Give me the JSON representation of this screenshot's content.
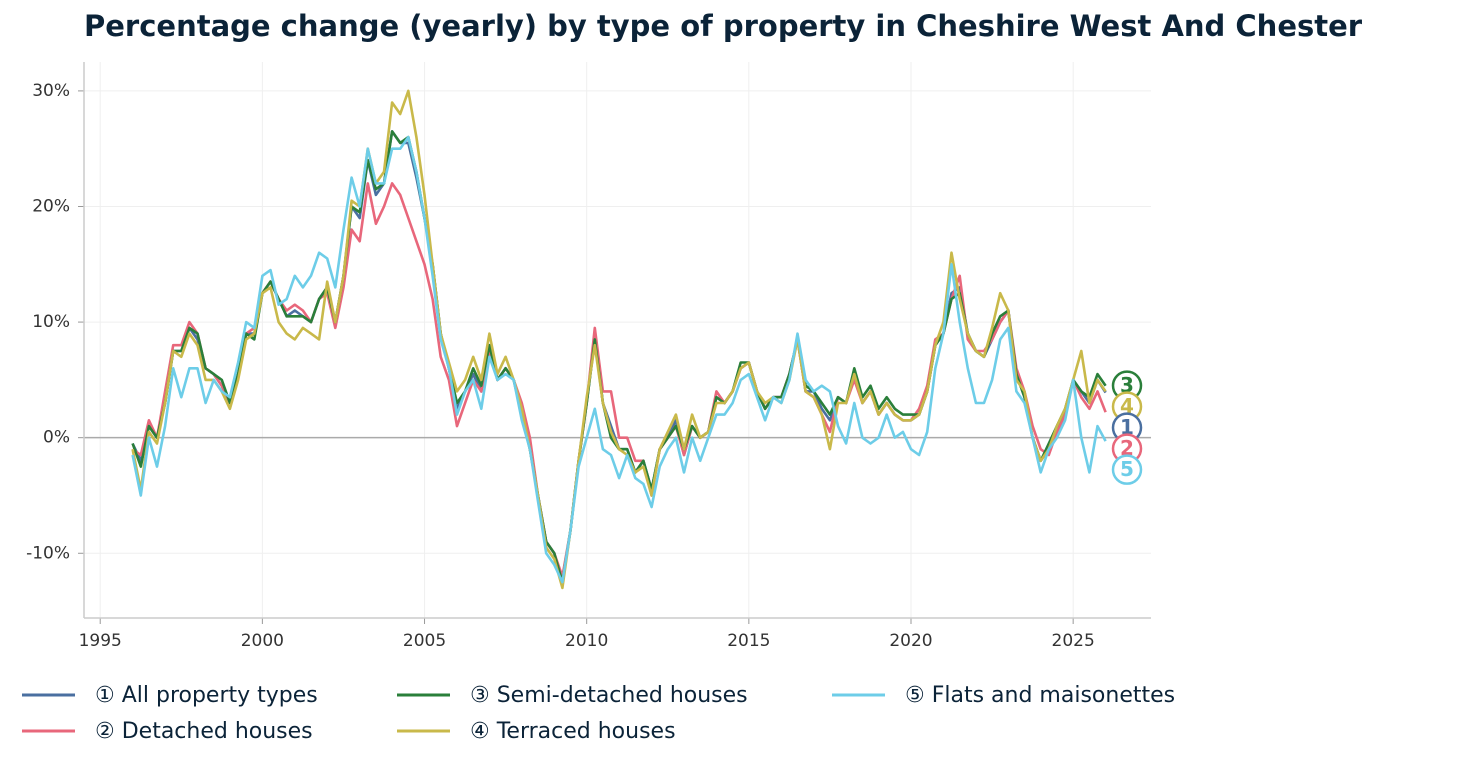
{
  "chart_data": {
    "type": "line",
    "title": "Percentage change (yearly) by type of property in Cheshire West And Chester",
    "x": [
      1996,
      1996.25,
      1996.5,
      1996.75,
      1997,
      1997.25,
      1997.5,
      1997.75,
      1998,
      1998.25,
      1998.5,
      1998.75,
      1999,
      1999.25,
      1999.5,
      1999.75,
      2000,
      2000.25,
      2000.5,
      2000.75,
      2001,
      2001.25,
      2001.5,
      2001.75,
      2002,
      2002.25,
      2002.5,
      2002.75,
      2003,
      2003.25,
      2003.5,
      2003.75,
      2004,
      2004.25,
      2004.5,
      2004.75,
      2005,
      2005.25,
      2005.5,
      2005.75,
      2006,
      2006.25,
      2006.5,
      2006.75,
      2007,
      2007.25,
      2007.5,
      2007.75,
      2008,
      2008.25,
      2008.5,
      2008.75,
      2009,
      2009.25,
      2009.5,
      2009.75,
      2010,
      2010.25,
      2010.5,
      2010.75,
      2011,
      2011.25,
      2011.5,
      2011.75,
      2012,
      2012.25,
      2012.5,
      2012.75,
      2013,
      2013.25,
      2013.5,
      2013.75,
      2014,
      2014.25,
      2014.5,
      2014.75,
      2015,
      2015.25,
      2015.5,
      2015.75,
      2016,
      2016.25,
      2016.5,
      2016.75,
      2017,
      2017.25,
      2017.5,
      2017.75,
      2018,
      2018.25,
      2018.5,
      2018.75,
      2019,
      2019.25,
      2019.5,
      2019.75,
      2020,
      2020.25,
      2020.5,
      2020.75,
      2021,
      2021.25,
      2021.5,
      2021.75,
      2022,
      2022.25,
      2022.5,
      2022.75,
      2023,
      2023.25,
      2023.5,
      2023.75,
      2024,
      2024.25,
      2024.5,
      2024.75,
      2025,
      2025.25,
      2025.5,
      2025.75,
      2026
    ],
    "series": [
      {
        "name": "① All property types",
        "label": "1",
        "color": "#4a6fa0",
        "values": [
          -0.5,
          -2,
          1,
          0,
          3,
          7.5,
          7.5,
          9.5,
          8.5,
          6,
          5.5,
          4.5,
          3,
          5.5,
          9,
          9,
          12.5,
          13.5,
          12,
          10.5,
          11,
          10.5,
          10,
          12,
          13,
          10,
          14,
          20,
          19,
          24,
          21,
          22,
          26.5,
          25.5,
          25.5,
          22.5,
          19,
          15,
          9,
          6,
          2.5,
          4,
          5.5,
          4,
          8,
          5,
          6,
          5,
          2,
          -1,
          -5,
          -9,
          -10,
          -12.5,
          -8,
          -2,
          3,
          8.5,
          3,
          1,
          -1,
          -1,
          -3,
          -2,
          -4.5,
          -1,
          0,
          1.5,
          -1.5,
          1,
          0,
          0.5,
          3.5,
          3,
          4,
          6,
          6.5,
          4,
          2.5,
          3.5,
          3.5,
          5.5,
          8.5,
          4,
          4,
          2.5,
          1.5,
          3.5,
          3,
          5.5,
          3,
          4,
          2,
          3,
          2,
          1.5,
          1.5,
          2,
          4,
          8,
          9,
          12.5,
          13,
          9,
          7.5,
          7,
          8.5,
          10,
          11,
          5.5,
          3.5,
          0,
          -2,
          -1,
          0.5,
          2,
          5,
          4,
          3,
          5,
          3.9
        ]
      },
      {
        "name": "② Detached houses",
        "label": "2",
        "color": "#e8677b",
        "values": [
          -1,
          -1.5,
          1.5,
          0,
          4,
          8,
          8,
          10,
          9,
          6,
          5.5,
          4.5,
          3,
          5.5,
          9,
          9.5,
          12.5,
          13.5,
          12,
          11,
          11.5,
          11,
          10,
          12,
          12.5,
          9.5,
          13,
          18,
          17,
          22,
          18.5,
          20,
          22,
          21,
          19,
          17,
          15,
          12,
          7,
          5,
          1,
          3,
          5,
          4,
          7.5,
          5,
          6,
          5,
          3,
          0,
          -5,
          -9,
          -10,
          -12,
          -8,
          -2,
          3,
          9.5,
          4,
          4,
          0,
          0,
          -2,
          -2,
          -5,
          -1,
          0,
          1,
          -1.5,
          1,
          0,
          0.5,
          4,
          3,
          4,
          6,
          6.5,
          4,
          2.5,
          3.5,
          3.5,
          5.5,
          8.5,
          4,
          3.5,
          2,
          0.5,
          3.5,
          3,
          5,
          3,
          4,
          2,
          3,
          2,
          1.5,
          1.5,
          2.5,
          4.5,
          8.5,
          9,
          12,
          14,
          8.5,
          7.5,
          7.5,
          8.5,
          10,
          11,
          6,
          4,
          1,
          -1,
          -1.5,
          0.5,
          2,
          5,
          3.5,
          2.5,
          4,
          2.2
        ]
      },
      {
        "name": "③ Semi-detached houses",
        "label": "3",
        "color": "#2a7f3a",
        "values": [
          -0.5,
          -2.5,
          1,
          0,
          3,
          7.5,
          7.5,
          9.5,
          9,
          6,
          5.5,
          5,
          3,
          5.5,
          9,
          8.5,
          12.5,
          13.5,
          12,
          10.5,
          10.5,
          10.5,
          10,
          12,
          13,
          10,
          14,
          20,
          19.5,
          24,
          21.5,
          22,
          26.5,
          25.5,
          26,
          23,
          19,
          15,
          9,
          6,
          3,
          4,
          6,
          4.5,
          8,
          5,
          6,
          5,
          2,
          -1,
          -5,
          -9,
          -10,
          -12.5,
          -8,
          -2,
          3,
          8.5,
          3,
          0,
          -1,
          -1,
          -3,
          -2,
          -4.5,
          -1,
          0,
          1,
          -1,
          1,
          0,
          0.5,
          3.5,
          3,
          4,
          6.5,
          6.5,
          4,
          2.5,
          3.5,
          3.5,
          5.5,
          8.5,
          4.5,
          4,
          3,
          2,
          3.5,
          3,
          6,
          3.5,
          4.5,
          2.5,
          3.5,
          2.5,
          2,
          2,
          2,
          4,
          8,
          9,
          12,
          12.5,
          9,
          7.5,
          7,
          9,
          10.5,
          11,
          5.5,
          3.5,
          0,
          -2,
          -0.5,
          1,
          2.5,
          5,
          4,
          3.5,
          5.5,
          4.5
        ]
      },
      {
        "name": "④ Terraced houses",
        "label": "4",
        "color": "#c9b94a",
        "values": [
          -1,
          -4.5,
          0.5,
          -0.5,
          3,
          7.5,
          7,
          9,
          8,
          5,
          5,
          4,
          2.5,
          5,
          8.5,
          9,
          12.5,
          13,
          10,
          9,
          8.5,
          9.5,
          9,
          8.5,
          13.5,
          10,
          14,
          20.5,
          20,
          25,
          22,
          23,
          29,
          28,
          30,
          26,
          21,
          15,
          9,
          6.5,
          4,
          5,
          7,
          5,
          9,
          5.5,
          7,
          5,
          2.5,
          -1,
          -5,
          -9.5,
          -10.5,
          -13,
          -8,
          -2,
          3.5,
          8,
          3,
          0.5,
          -1,
          -1.5,
          -3,
          -2.5,
          -5,
          -1,
          0.5,
          2,
          -1,
          2,
          0,
          0.5,
          3,
          3,
          4,
          6,
          6.5,
          4,
          3,
          3.5,
          3,
          5,
          8.5,
          4,
          3.5,
          2,
          -1,
          3,
          3,
          5.5,
          3,
          4,
          2,
          3,
          2,
          1.5,
          1.5,
          2,
          4,
          8,
          10,
          16,
          12,
          9,
          7.5,
          7,
          9.5,
          12.5,
          11,
          5,
          4,
          0,
          -2,
          -1,
          1,
          2.5,
          5,
          7.5,
          3,
          5,
          4
        ]
      },
      {
        "name": "⑤ Flats and maisonettes",
        "label": "5",
        "color": "#6dcde8",
        "values": [
          -1.5,
          -5,
          0,
          -2.5,
          1,
          6,
          3.5,
          6,
          6,
          3,
          5,
          4,
          3.5,
          6.5,
          10,
          9.5,
          14,
          14.5,
          11.5,
          12,
          14,
          13,
          14,
          16,
          15.5,
          13,
          18,
          22.5,
          20,
          25,
          22,
          22,
          25,
          25,
          26,
          23,
          19,
          14,
          8.5,
          6,
          2,
          4,
          5,
          2.5,
          7,
          5,
          5.5,
          5,
          1.5,
          -1,
          -5.5,
          -10,
          -11,
          -12.5,
          -8,
          -2.5,
          0,
          2.5,
          -1,
          -1.5,
          -3.5,
          -1.5,
          -3.5,
          -4,
          -6,
          -2.5,
          -1,
          0,
          -3,
          0,
          -2,
          0,
          2,
          2,
          3,
          5,
          5.5,
          3.5,
          1.5,
          3.5,
          3,
          5,
          9,
          5,
          4,
          4.5,
          4,
          1,
          -0.5,
          3,
          0,
          -0.5,
          0,
          2,
          0,
          0.5,
          -1,
          -1.5,
          0.5,
          6,
          9,
          15,
          10,
          6,
          3,
          3,
          5,
          8.5,
          9.5,
          4,
          3,
          0,
          -3,
          -1,
          0,
          1.5,
          5,
          0,
          -3,
          1,
          -0.3
        ]
      }
    ],
    "xlim": [
      1994.5,
      2027.4
    ],
    "ylim": [
      -15.6,
      32.5
    ],
    "xticks": [
      1995,
      2000,
      2005,
      2010,
      2015,
      2020,
      2025
    ],
    "yticks": [
      {
        "value": -10,
        "label": "-10%"
      },
      {
        "value": 0,
        "label": "0%"
      },
      {
        "value": 10,
        "label": "10%"
      },
      {
        "value": 20,
        "label": "20%"
      },
      {
        "value": 30,
        "label": "30%"
      }
    ],
    "grid": true,
    "legend": "bottom"
  }
}
